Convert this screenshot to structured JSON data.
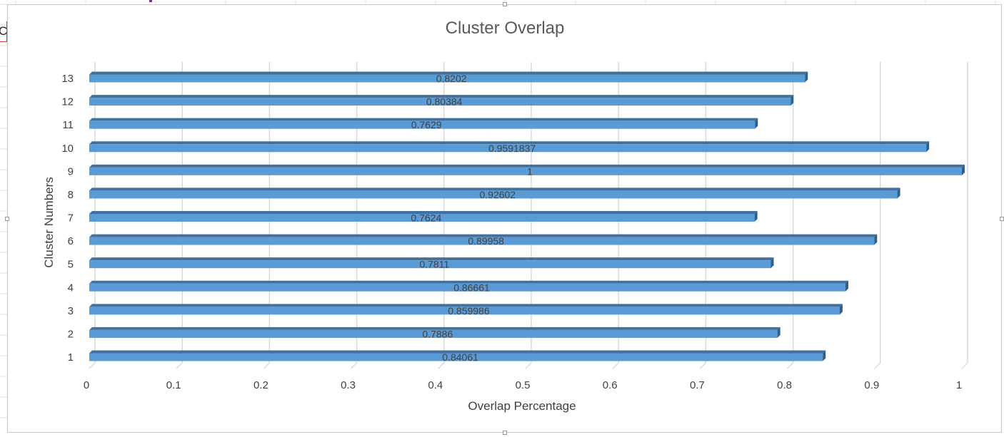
{
  "sheet": {
    "cell_text": "C"
  },
  "chart_data": {
    "type": "bar",
    "orientation": "horizontal",
    "style": "3d-clustered-bar",
    "title": "Cluster Overlap",
    "xlabel": "Overlap Percentage",
    "ylabel": "Cluster Numbers",
    "xlim": [
      0,
      1
    ],
    "x_ticks": [
      "0",
      "0.1",
      "0.2",
      "0.3",
      "0.4",
      "0.5",
      "0.6",
      "0.7",
      "0.8",
      "0.9",
      "1"
    ],
    "categories": [
      "1",
      "2",
      "3",
      "4",
      "5",
      "6",
      "7",
      "8",
      "9",
      "10",
      "11",
      "12",
      "13"
    ],
    "values": [
      0.84061,
      0.7886,
      0.859986,
      0.86661,
      0.7811,
      0.89958,
      0.7624,
      0.92602,
      1,
      0.9591837,
      0.7629,
      0.80384,
      0.8202
    ],
    "data_labels": [
      "0.84061",
      "0.7886",
      "0.859986",
      "0.86661",
      "0.7811",
      "0.89958",
      "0.7624",
      "0.92602",
      "1",
      "0.9591837",
      "0.7629",
      "0.80384",
      "0.8202"
    ],
    "grid": true,
    "legend": "none",
    "colors": {
      "bar": "#5b9bd5",
      "bar_top": "#41719c",
      "bar_side": "#2e5f8c",
      "grid": "#d9d9d9",
      "text": "#404040",
      "title": "#595959"
    }
  }
}
